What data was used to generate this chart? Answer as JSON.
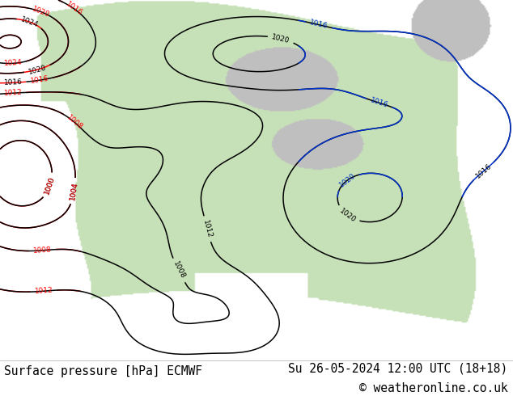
{
  "title_left": "Surface pressure [hPa] ECMWF",
  "title_right": "Su 26-05-2024 12:00 UTC (18+18)",
  "copyright": "© weatheronline.co.uk",
  "bg_color": "#ffffff",
  "text_color": "#000000",
  "footer_fontsize": 10.5,
  "fig_width": 6.34,
  "fig_height": 4.9,
  "dpi": 100,
  "map_bg": "#ffffff",
  "land_color": [
    0.78,
    0.88,
    0.72
  ],
  "ocean_color": [
    1.0,
    1.0,
    1.0
  ],
  "gray_color": [
    0.75,
    0.75,
    0.75
  ]
}
